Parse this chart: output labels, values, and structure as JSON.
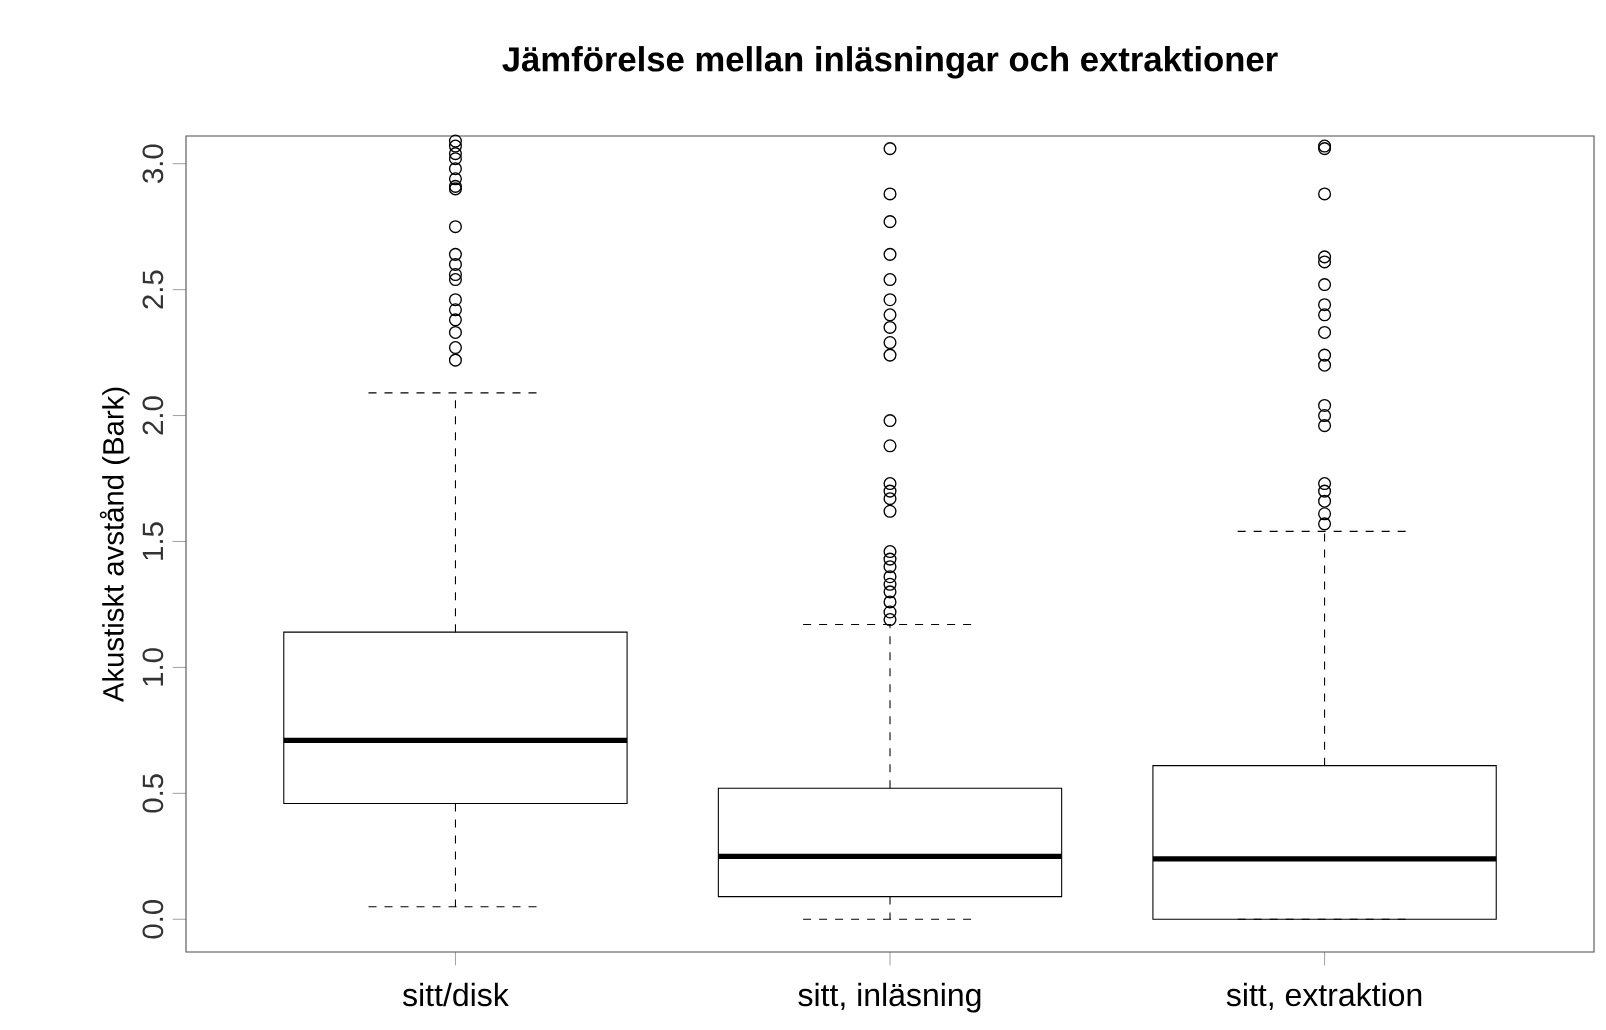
{
  "chart_data": {
    "type": "box",
    "title": "Jämförelse mellan inläsningar och extraktioner",
    "ylabel": "Akustiskt avstånd (Bark)",
    "categories": [
      "sitt/disk",
      "sitt, inläsning",
      "sitt, extraktion"
    ],
    "ylim": [
      -0.13,
      3.11
    ],
    "yticks": [
      {
        "value": 0,
        "label": "0.0"
      },
      {
        "value": 0.5,
        "label": "0.5"
      },
      {
        "value": 1,
        "label": "1.0"
      },
      {
        "value": 1.5,
        "label": "1.5"
      },
      {
        "value": 2,
        "label": "2.0"
      },
      {
        "value": 2.5,
        "label": "2.5"
      },
      {
        "value": 3,
        "label": "3.0"
      }
    ],
    "boxes": [
      {
        "low": 0.05,
        "q1": 0.46,
        "median": 0.71,
        "q3": 1.14,
        "high": 2.09,
        "outliers": [
          3.09,
          3.07,
          3.04,
          3.02,
          2.98,
          2.94,
          2.91,
          2.9,
          2.75,
          2.64,
          2.6,
          2.56,
          2.54,
          2.46,
          2.42,
          2.38,
          2.33,
          2.27,
          2.22
        ]
      },
      {
        "low": 0.0,
        "q1": 0.09,
        "median": 0.25,
        "q3": 0.52,
        "high": 1.17,
        "outliers": [
          3.06,
          2.88,
          2.77,
          2.64,
          2.54,
          2.46,
          2.4,
          2.35,
          2.29,
          2.24,
          1.98,
          1.88,
          1.73,
          1.7,
          1.67,
          1.62,
          1.46,
          1.43,
          1.4,
          1.36,
          1.33,
          1.3,
          1.26,
          1.22,
          1.19
        ]
      },
      {
        "low": 0.0,
        "q1": 0.0,
        "median": 0.24,
        "q3": 0.61,
        "high": 1.54,
        "outliers": [
          3.07,
          3.06,
          2.88,
          2.63,
          2.61,
          2.52,
          2.44,
          2.4,
          2.33,
          2.24,
          2.2,
          2.04,
          2.0,
          1.96,
          1.73,
          1.7,
          1.66,
          1.61,
          1.57
        ]
      }
    ]
  }
}
